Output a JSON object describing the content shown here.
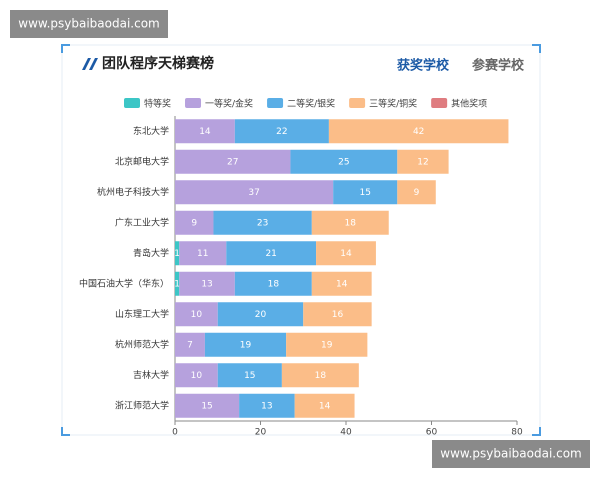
{
  "watermarks": [
    "www.psybaibaodai.com",
    "www.psybaibaodai.com"
  ],
  "tabs": [
    "获奖学校",
    "参赛学校"
  ],
  "chart_data": {
    "type": "stacked-barh",
    "title": "团队程序天梯赛榜",
    "categories": [
      "东北大学",
      "北京邮电大学",
      "杭州电子科技大学",
      "广东工业大学",
      "青岛大学",
      "中国石油大学（华东）",
      "山东理工大学",
      "杭州师范大学",
      "吉林大学",
      "浙江师范大学"
    ],
    "series": [
      {
        "name": "特等奖",
        "color": "#3cc6c6",
        "values": [
          0,
          0,
          0,
          0,
          1,
          1,
          0,
          0,
          0,
          0
        ]
      },
      {
        "name": "一等奖/金奖",
        "color": "#b6a1dd",
        "values": [
          14,
          27,
          37,
          9,
          11,
          13,
          10,
          7,
          10,
          15
        ]
      },
      {
        "name": "二等奖/银奖",
        "color": "#5aaee6",
        "values": [
          22,
          25,
          15,
          23,
          21,
          18,
          20,
          19,
          15,
          13
        ]
      },
      {
        "name": "三等奖/铜奖",
        "color": "#fbbd88",
        "values": [
          42,
          12,
          9,
          18,
          14,
          14,
          16,
          19,
          18,
          14
        ]
      },
      {
        "name": "其他奖项",
        "color": "#df7c80",
        "values": [
          0,
          0,
          0,
          0,
          0,
          0,
          0,
          0,
          0,
          0
        ]
      }
    ],
    "xlim": [
      0,
      80
    ],
    "xticks": [
      0,
      20,
      40,
      60,
      80
    ],
    "grid": false,
    "legend": "top"
  }
}
